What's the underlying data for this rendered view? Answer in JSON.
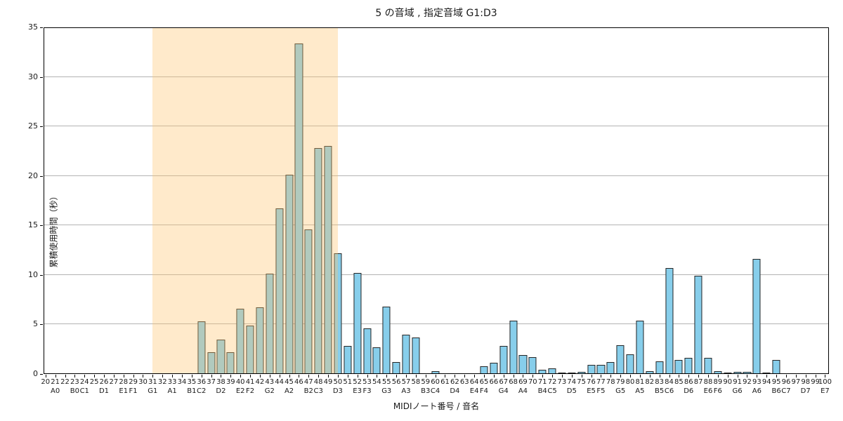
{
  "chart_data": {
    "type": "bar",
    "title": "5 の音域 , 指定音域 G1:D3",
    "xlabel": "MIDIノート番号 / 音名",
    "ylabel": "累積使用時間（秒）",
    "xlim": [
      19.8,
      100.4
    ],
    "ylim": [
      0,
      35
    ],
    "yticks": [
      0,
      5,
      10,
      15,
      20,
      25,
      30,
      35
    ],
    "grid": "horizontal-gray",
    "legend": "none",
    "bar_width_units": 0.8,
    "highlight_span": {
      "from_midi": 31,
      "to_midi": 50,
      "range_label": "G1:D3"
    },
    "x_ticks": [
      20,
      21,
      22,
      23,
      24,
      25,
      26,
      27,
      28,
      29,
      30,
      31,
      32,
      33,
      34,
      35,
      36,
      37,
      38,
      39,
      40,
      41,
      42,
      43,
      44,
      45,
      46,
      47,
      48,
      49,
      50,
      51,
      52,
      53,
      54,
      55,
      56,
      57,
      58,
      59,
      60,
      61,
      62,
      63,
      64,
      65,
      66,
      67,
      68,
      69,
      70,
      71,
      72,
      73,
      74,
      75,
      76,
      77,
      78,
      79,
      80,
      81,
      82,
      83,
      84,
      85,
      86,
      87,
      88,
      89,
      90,
      91,
      92,
      93,
      94,
      95,
      96,
      97,
      98,
      99,
      100
    ],
    "values": [
      0,
      0,
      0,
      0,
      0,
      0,
      0,
      0,
      0,
      0,
      0,
      0,
      0,
      0,
      0,
      0,
      5.3,
      2.2,
      3.5,
      2.2,
      6.6,
      4.9,
      6.7,
      10.1,
      16.7,
      20.1,
      33.4,
      14.6,
      22.8,
      23.0,
      12.2,
      2.8,
      10.2,
      4.6,
      2.7,
      6.8,
      1.2,
      4.0,
      3.7,
      0,
      0.3,
      0,
      0,
      0,
      0,
      0.8,
      1.1,
      2.8,
      5.4,
      1.9,
      1.7,
      0.4,
      0.6,
      0.1,
      0.1,
      0.2,
      0.9,
      0.9,
      1.2,
      2.9,
      2.0,
      5.4,
      0.25,
      1.3,
      10.7,
      1.4,
      1.6,
      9.9,
      1.65,
      0.3,
      0.1,
      0.2,
      0.2,
      11.6,
      0.05,
      1.45,
      0,
      0,
      0,
      0,
      0
    ],
    "note_names": {
      "21": "A0",
      "23": "B0",
      "24": "C1",
      "26": "D1",
      "28": "E1",
      "29": "F1",
      "31": "G1",
      "33": "A1",
      "35": "B1",
      "36": "C2",
      "38": "D2",
      "40": "E2",
      "41": "F2",
      "43": "G2",
      "45": "A2",
      "47": "B2",
      "48": "C3",
      "50": "D3",
      "52": "E3",
      "53": "F3",
      "55": "G3",
      "57": "A3",
      "59": "B3",
      "60": "C4",
      "62": "D4",
      "64": "E4",
      "65": "F4",
      "67": "G4",
      "69": "A4",
      "71": "B4",
      "72": "C5",
      "74": "D5",
      "76": "E5",
      "77": "F5",
      "79": "G5",
      "81": "A5",
      "83": "B5",
      "84": "C6",
      "86": "D6",
      "88": "E6",
      "89": "F6",
      "91": "G6",
      "93": "A6",
      "95": "B6",
      "96": "C7",
      "98": "D7",
      "100": "E7"
    },
    "colors": {
      "bar_fill": "#87ceeb",
      "bar_edge": "#262626",
      "highlight_fill": "#ffc36a",
      "highlight_opacity": 0.35,
      "grid": "#b3b3b3",
      "axis": "#000000",
      "text": "#1a1a1a"
    }
  }
}
